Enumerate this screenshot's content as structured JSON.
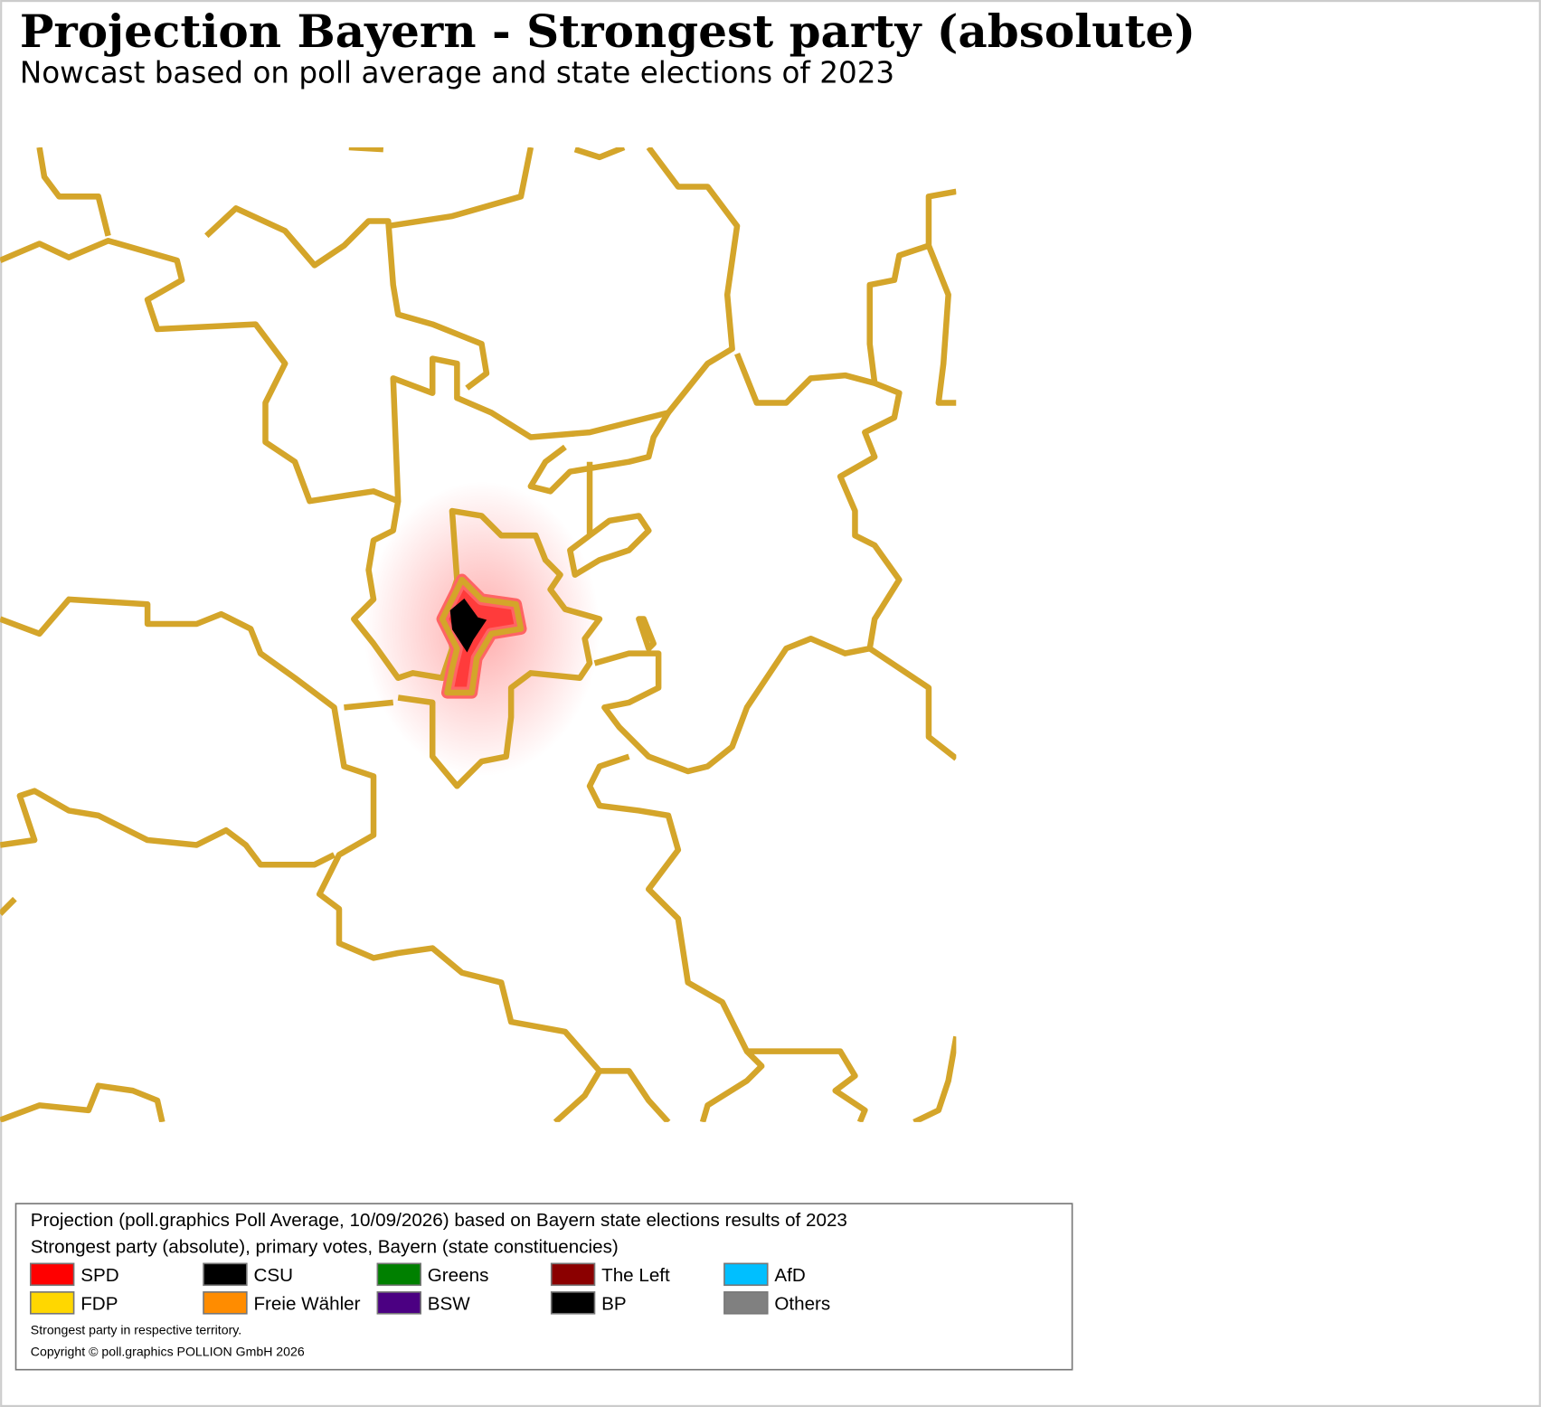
{
  "header": {
    "title": "Projection Bayern - Strongest party (absolute)",
    "subtitle": "Nowcast based on poll average and state elections of 2023"
  },
  "legend": {
    "source": "Projection (poll.graphics Poll Average, 10/09/2026) based on Bayern state elections results of 2023",
    "description": "Strongest party (absolute), primary votes, Bayern (state constituencies)",
    "items": [
      {
        "name": "SPD",
        "color": "#ff0000"
      },
      {
        "name": "CSU",
        "color": "#000000"
      },
      {
        "name": "Greens",
        "color": "#008000"
      },
      {
        "name": "The Left",
        "color": "#8b0000"
      },
      {
        "name": "AfD",
        "color": "#00bfff"
      },
      {
        "name": "FDP",
        "color": "#ffd700"
      },
      {
        "name": "Freie Wähler",
        "color": "#ff8c00"
      },
      {
        "name": "BSW",
        "color": "#4b0082"
      },
      {
        "name": "BP",
        "color": "#000000"
      },
      {
        "name": "Others",
        "color": "#808080"
      }
    ],
    "notes": [
      "Strongest party in respective territory.",
      "Copyright © poll.graphics POLLION GmbH 2026"
    ]
  }
}
